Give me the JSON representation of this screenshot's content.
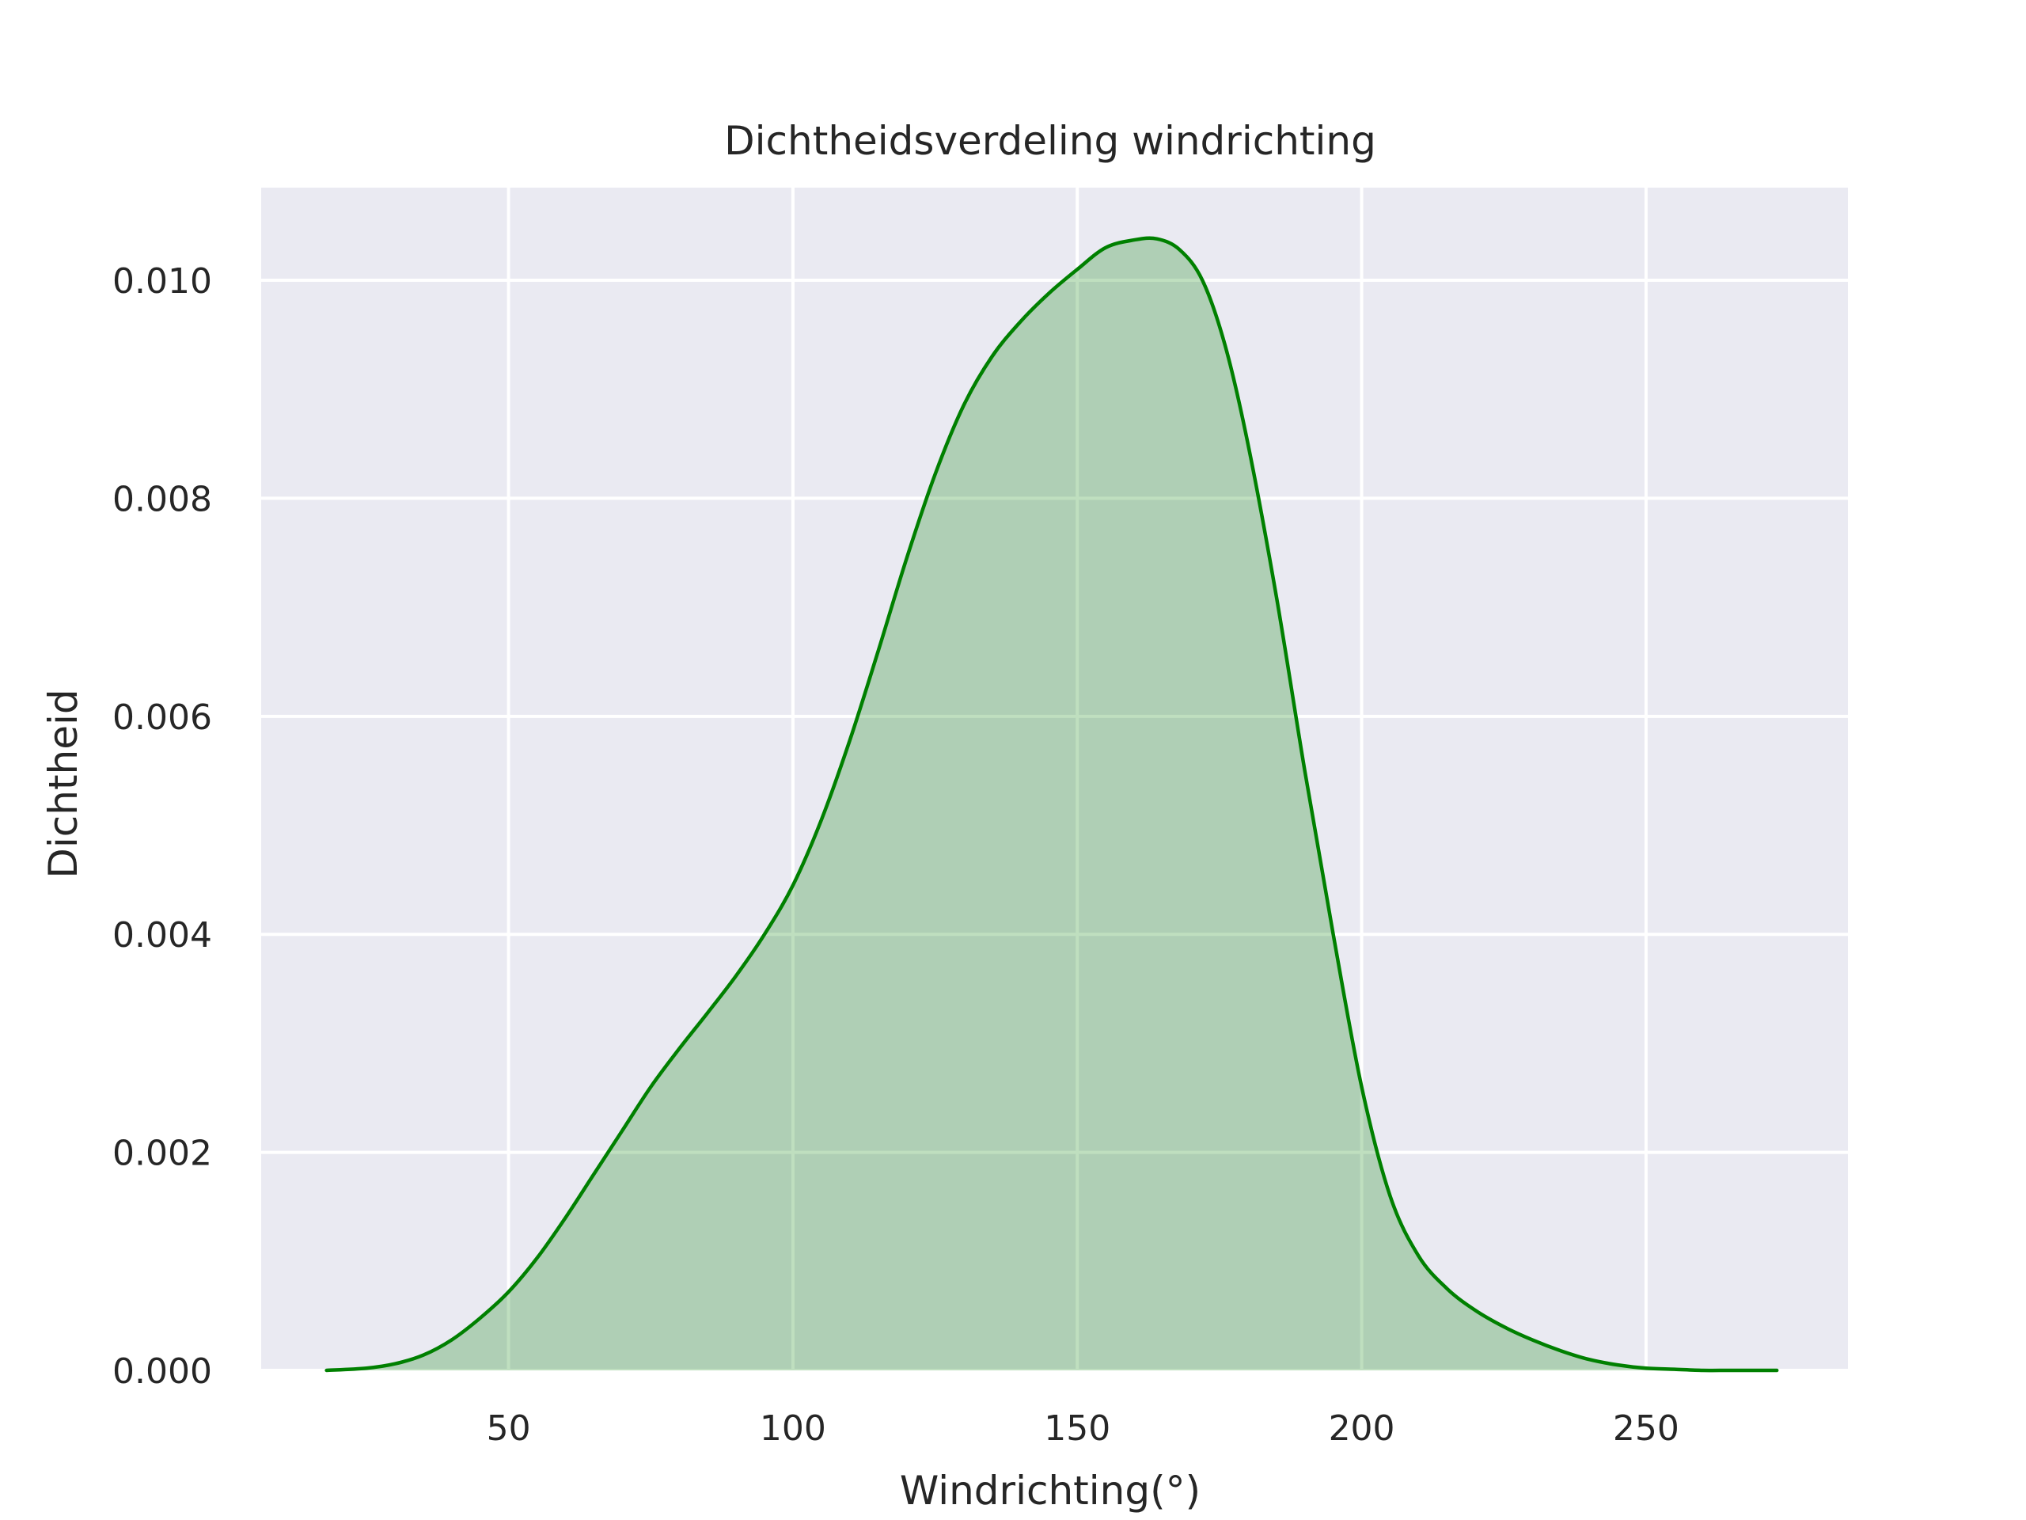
{
  "chart_data": {
    "type": "area",
    "title": "Dichtheidsverdeling windrichting",
    "xlabel": "Windrichting(°)",
    "ylabel": "Dichtheid",
    "xlim": [
      6.5,
      285.5
    ],
    "ylim": [
      0.0,
      0.01085
    ],
    "xticks": [
      50,
      100,
      150,
      200,
      250
    ],
    "xtick_labels": [
      "50",
      "100",
      "150",
      "200",
      "250"
    ],
    "yticks": [
      0.0,
      0.002,
      0.004,
      0.006,
      0.008,
      0.01
    ],
    "ytick_labels": [
      "0.000",
      "0.002",
      "0.004",
      "0.006",
      "0.008",
      "0.010"
    ],
    "grid": true,
    "background_color": "#eaeaf2",
    "line_color": "#008000",
    "fill_color": "#008000",
    "fill_opacity": 0.25,
    "series": [
      {
        "x": [
          18,
          25,
          30,
          35,
          40,
          45,
          50,
          55,
          60,
          65,
          70,
          75,
          80,
          85,
          90,
          95,
          100,
          105,
          110,
          115,
          120,
          125,
          130,
          135,
          140,
          145,
          150,
          155,
          160,
          164,
          168,
          172,
          176,
          180,
          185,
          190,
          195,
          200,
          205,
          210,
          215,
          220,
          225,
          230,
          235,
          240,
          245,
          250,
          255,
          260,
          265,
          273
        ],
        "y": [
          0.0,
          2e-05,
          6e-05,
          0.00014,
          0.00028,
          0.00048,
          0.00072,
          0.00103,
          0.0014,
          0.0018,
          0.0022,
          0.0026,
          0.00295,
          0.00328,
          0.00362,
          0.004,
          0.00445,
          0.00505,
          0.00578,
          0.0066,
          0.00745,
          0.00822,
          0.00885,
          0.0093,
          0.00962,
          0.00988,
          0.0101,
          0.0103,
          0.01037,
          0.01038,
          0.01028,
          0.01,
          0.0094,
          0.0085,
          0.0071,
          0.0055,
          0.004,
          0.0026,
          0.0016,
          0.00105,
          0.00075,
          0.00055,
          0.0004,
          0.00028,
          0.00018,
          0.0001,
          5e-05,
          2e-05,
          1e-05,
          0.0,
          0.0,
          0.0
        ]
      }
    ]
  }
}
